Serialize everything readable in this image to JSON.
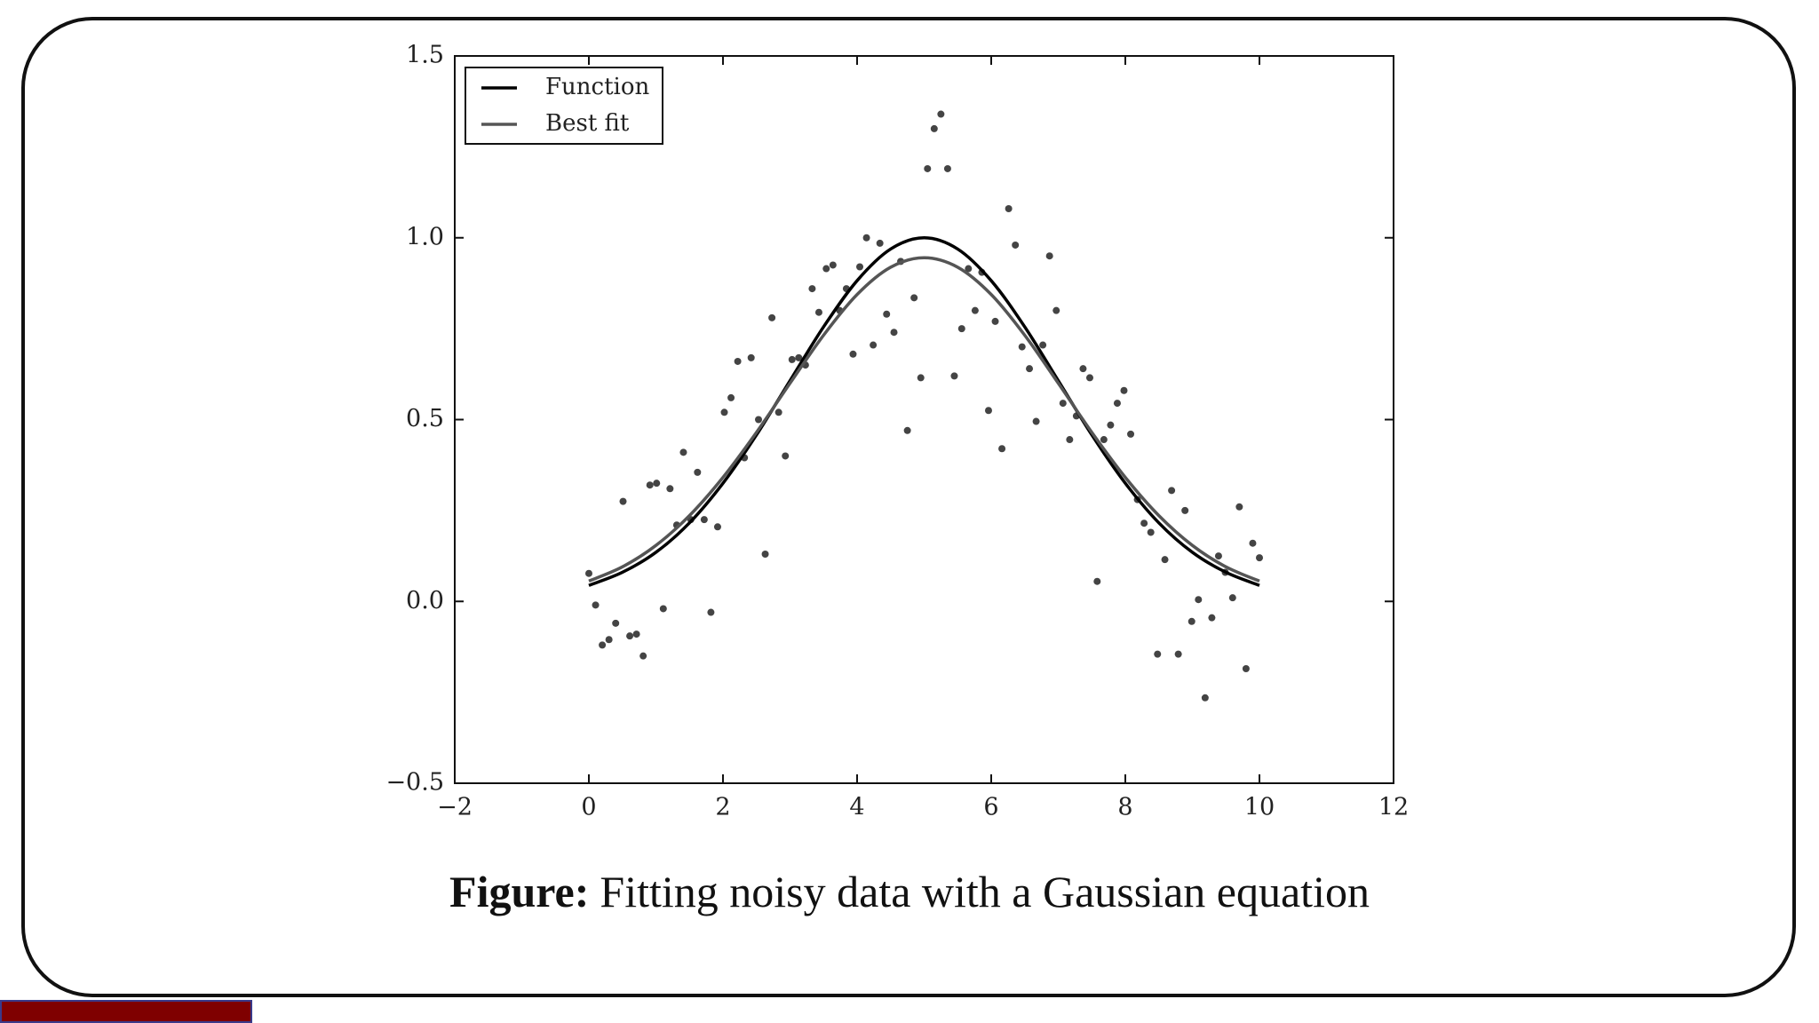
{
  "chart_data": {
    "type": "scatter",
    "x": [
      0,
      0.1,
      0.2,
      0.3,
      0.4,
      0.51,
      0.61,
      0.71,
      0.81,
      0.91,
      1.01,
      1.11,
      1.21,
      1.31,
      1.41,
      1.52,
      1.62,
      1.72,
      1.82,
      1.92,
      2.02,
      2.12,
      2.22,
      2.32,
      2.42,
      2.53,
      2.63,
      2.73,
      2.83,
      2.93,
      3.03,
      3.13,
      3.23,
      3.33,
      3.43,
      3.54,
      3.64,
      3.74,
      3.84,
      3.94,
      4.04,
      4.14,
      4.24,
      4.34,
      4.44,
      4.55,
      4.65,
      4.75,
      4.85,
      4.95,
      5.05,
      5.15,
      5.25,
      5.35,
      5.45,
      5.56,
      5.66,
      5.76,
      5.86,
      5.96,
      6.06,
      6.16,
      6.26,
      6.36,
      6.46,
      6.57,
      6.67,
      6.77,
      6.87,
      6.97,
      7.07,
      7.17,
      7.27,
      7.37,
      7.47,
      7.58,
      7.68,
      7.78,
      7.88,
      7.98,
      8.08,
      8.18,
      8.28,
      8.38,
      8.48,
      8.59,
      8.69,
      8.79,
      8.89,
      8.99,
      9.09,
      9.19,
      9.29,
      9.39,
      9.49,
      9.6,
      9.7,
      9.8,
      9.9,
      10
    ],
    "values": [
      0.077,
      -0.01,
      -0.12,
      -0.105,
      -0.06,
      0.275,
      -0.095,
      -0.09,
      -0.15,
      0.32,
      0.325,
      -0.02,
      0.31,
      0.21,
      0.41,
      0.225,
      0.355,
      0.225,
      -0.03,
      0.205,
      0.52,
      0.56,
      0.66,
      0.395,
      0.67,
      0.5,
      0.13,
      0.78,
      0.52,
      0.4,
      0.665,
      0.67,
      0.65,
      0.86,
      0.795,
      0.915,
      0.925,
      0.8,
      0.86,
      0.68,
      0.92,
      1.0,
      0.705,
      0.985,
      0.79,
      0.74,
      0.935,
      0.47,
      0.835,
      0.615,
      1.19,
      1.3,
      1.34,
      1.19,
      0.62,
      0.75,
      0.915,
      0.8,
      0.905,
      0.525,
      0.77,
      0.42,
      1.08,
      0.98,
      0.7,
      0.64,
      0.495,
      0.705,
      0.95,
      0.8,
      0.545,
      0.445,
      0.51,
      0.64,
      0.615,
      0.055,
      0.445,
      0.485,
      0.545,
      0.58,
      0.46,
      0.28,
      0.215,
      0.19,
      -0.145,
      0.115,
      0.305,
      -0.145,
      0.25,
      -0.055,
      0.005,
      -0.265,
      -0.045,
      0.125,
      0.08,
      0.01,
      0.26,
      -0.185,
      0.16,
      0.12
    ],
    "color": "#444444",
    "series": [
      {
        "name": "Function",
        "color": "#000000",
        "x": [
          0,
          0.5,
          1,
          1.5,
          2,
          2.5,
          3,
          3.5,
          4,
          4.5,
          5,
          5.5,
          6,
          6.5,
          7,
          7.5,
          8,
          8.5,
          9,
          9.5,
          10
        ],
        "values": [
          0.044,
          0.08,
          0.135,
          0.216,
          0.325,
          0.458,
          0.607,
          0.755,
          0.882,
          0.969,
          1.0,
          0.969,
          0.882,
          0.755,
          0.607,
          0.458,
          0.325,
          0.216,
          0.135,
          0.08,
          0.044
        ]
      },
      {
        "name": "Best fit",
        "color": "#555555",
        "x": [
          0,
          0.5,
          1,
          1.5,
          2,
          2.5,
          3,
          3.5,
          4,
          4.5,
          5,
          5.5,
          6,
          6.5,
          7,
          7.5,
          8,
          8.5,
          9,
          9.5,
          10
        ],
        "values": [
          0.056,
          0.095,
          0.154,
          0.236,
          0.341,
          0.465,
          0.6,
          0.732,
          0.844,
          0.919,
          0.945,
          0.919,
          0.844,
          0.732,
          0.6,
          0.465,
          0.341,
          0.236,
          0.154,
          0.095,
          0.056
        ]
      }
    ],
    "xlim": [
      -2,
      12
    ],
    "xticks": [
      {
        "value": -2,
        "label": "−2"
      },
      0,
      2,
      4,
      6,
      8,
      10,
      12
    ],
    "ylim": [
      -0.5,
      1.5
    ],
    "yticks": [
      {
        "value": -0.5,
        "label": "−0.5"
      },
      {
        "value": 0,
        "label": "0.0"
      },
      0.5,
      {
        "value": 1,
        "label": "1.0"
      },
      {
        "value": 1.5,
        "label": "1.5"
      }
    ],
    "legend": "upper left",
    "grid": false
  },
  "caption": {
    "label": "Figure:",
    "text": "Fitting noisy data with a Gaussian equation"
  }
}
